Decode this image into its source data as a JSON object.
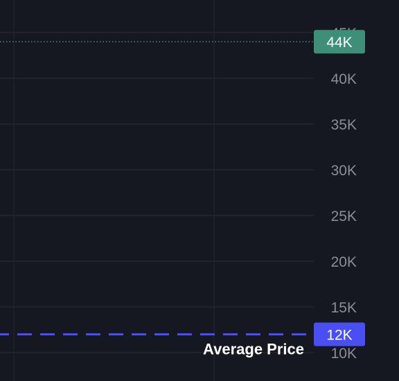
{
  "chart_data": {
    "type": "line",
    "title": "",
    "xlabel": "",
    "ylabel": "",
    "ylim": [
      9000,
      47000
    ],
    "y_ticks": [
      10000,
      15000,
      20000,
      25000,
      30000,
      35000,
      40000,
      45000
    ],
    "y_tick_labels": [
      "10K",
      "15K",
      "20K",
      "25K",
      "30K",
      "35K",
      "40K",
      "45K"
    ],
    "grid": true,
    "series": [],
    "price_lines": [
      {
        "id": "current",
        "value": 44000,
        "label": "44K",
        "style": "dotted",
        "color": "#3d8f77"
      },
      {
        "id": "average",
        "value": 12000,
        "label": "12K",
        "style": "dashed",
        "color": "#4a4ff5",
        "caption": "Average Price"
      }
    ]
  },
  "colors": {
    "background": "#161821",
    "grid": "#242631",
    "tick_text": "#8a8d98"
  }
}
